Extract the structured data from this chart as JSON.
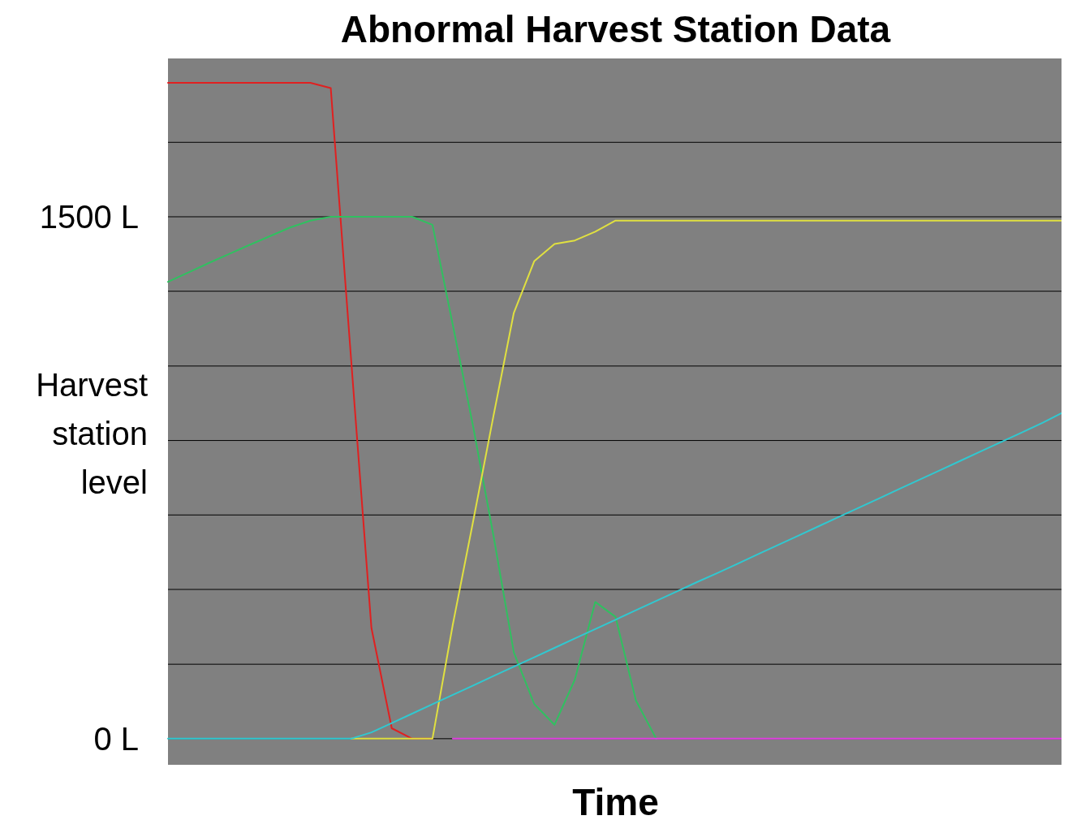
{
  "chart_data": {
    "type": "line",
    "title": "Abnormal Harvest Station Data",
    "xlabel": "Time",
    "ylabel": "Harvest station level",
    "categories": [
      null,
      null,
      null,
      null,
      null,
      null,
      null,
      null,
      null,
      null,
      null,
      null,
      null,
      null,
      null,
      null,
      null,
      null,
      null,
      null,
      null,
      null,
      null,
      null,
      null,
      null,
      null,
      null,
      null,
      null,
      null,
      null,
      null,
      null,
      null,
      null,
      null,
      null,
      null,
      null,
      null,
      null,
      null,
      null,
      null
    ],
    "ylim": [
      -75,
      1955
    ],
    "yticks": [
      {
        "value": 0,
        "label": "0 L"
      },
      {
        "value": 214,
        "label": null
      },
      {
        "value": 429,
        "label": null
      },
      {
        "value": 643,
        "label": null
      },
      {
        "value": 857,
        "label": null
      },
      {
        "value": 1071,
        "label": null
      },
      {
        "value": 1286,
        "label": null
      },
      {
        "value": 1500,
        "label": "1500 L"
      },
      {
        "value": 1714,
        "label": null
      }
    ],
    "grid": "y",
    "series": [
      {
        "color": "#e02020",
        "values": [
          1885,
          1885,
          1885,
          1885,
          1885,
          1885,
          1885,
          1885,
          1870,
          1091,
          318,
          30,
          0,
          0,
          null,
          null,
          null,
          null,
          null,
          null,
          null,
          null,
          null,
          null,
          null,
          null,
          null,
          null,
          null,
          null,
          null,
          null,
          null,
          null,
          null,
          null,
          null,
          null,
          null,
          null,
          null,
          null,
          null,
          null,
          null
        ]
      },
      {
        "color": "#30c060",
        "values": [
          1313,
          1340,
          1367,
          1393,
          1419,
          1444,
          1469,
          1489,
          1500,
          1500,
          1500,
          1500,
          1500,
          1477,
          1189,
          897,
          583,
          248,
          100,
          40,
          170,
          393,
          350,
          110,
          0,
          null,
          null,
          null,
          null,
          null,
          null,
          null,
          null,
          null,
          null,
          null,
          null,
          null,
          null,
          null,
          null,
          null,
          null,
          null,
          null
        ]
      },
      {
        "color": "#e0e040",
        "values": [
          null,
          null,
          null,
          null,
          null,
          null,
          null,
          null,
          null,
          0,
          0,
          0,
          0,
          0,
          328,
          625,
          928,
          1224,
          1372,
          1422,
          1432,
          1457,
          1489,
          1489,
          1489,
          1489,
          1489,
          1489,
          1489,
          1489,
          1489,
          1489,
          1489,
          1489,
          1489,
          1489,
          1489,
          1489,
          1489,
          1489,
          1489,
          1489,
          1489,
          1489,
          1489
        ]
      },
      {
        "color": "#30c8d0",
        "values": [
          0,
          0,
          0,
          0,
          0,
          0,
          0,
          0,
          0,
          0,
          18,
          45,
          72,
          99,
          126,
          153,
          180,
          207,
          234,
          261,
          288,
          315,
          342,
          369,
          396,
          423,
          450,
          476,
          503,
          530,
          557,
          584,
          611,
          638,
          665,
          692,
          719,
          746,
          773,
          800,
          827,
          854,
          881,
          908,
          938
        ]
      },
      {
        "color": "#e040e0",
        "values": [
          null,
          null,
          null,
          null,
          null,
          null,
          null,
          null,
          null,
          null,
          null,
          null,
          null,
          null,
          0,
          0,
          0,
          0,
          0,
          0,
          0,
          0,
          0,
          0,
          0,
          0,
          0,
          0,
          0,
          0,
          0,
          0,
          0,
          0,
          0,
          0,
          0,
          0,
          0,
          0,
          0,
          0,
          0,
          0,
          0
        ]
      }
    ]
  }
}
